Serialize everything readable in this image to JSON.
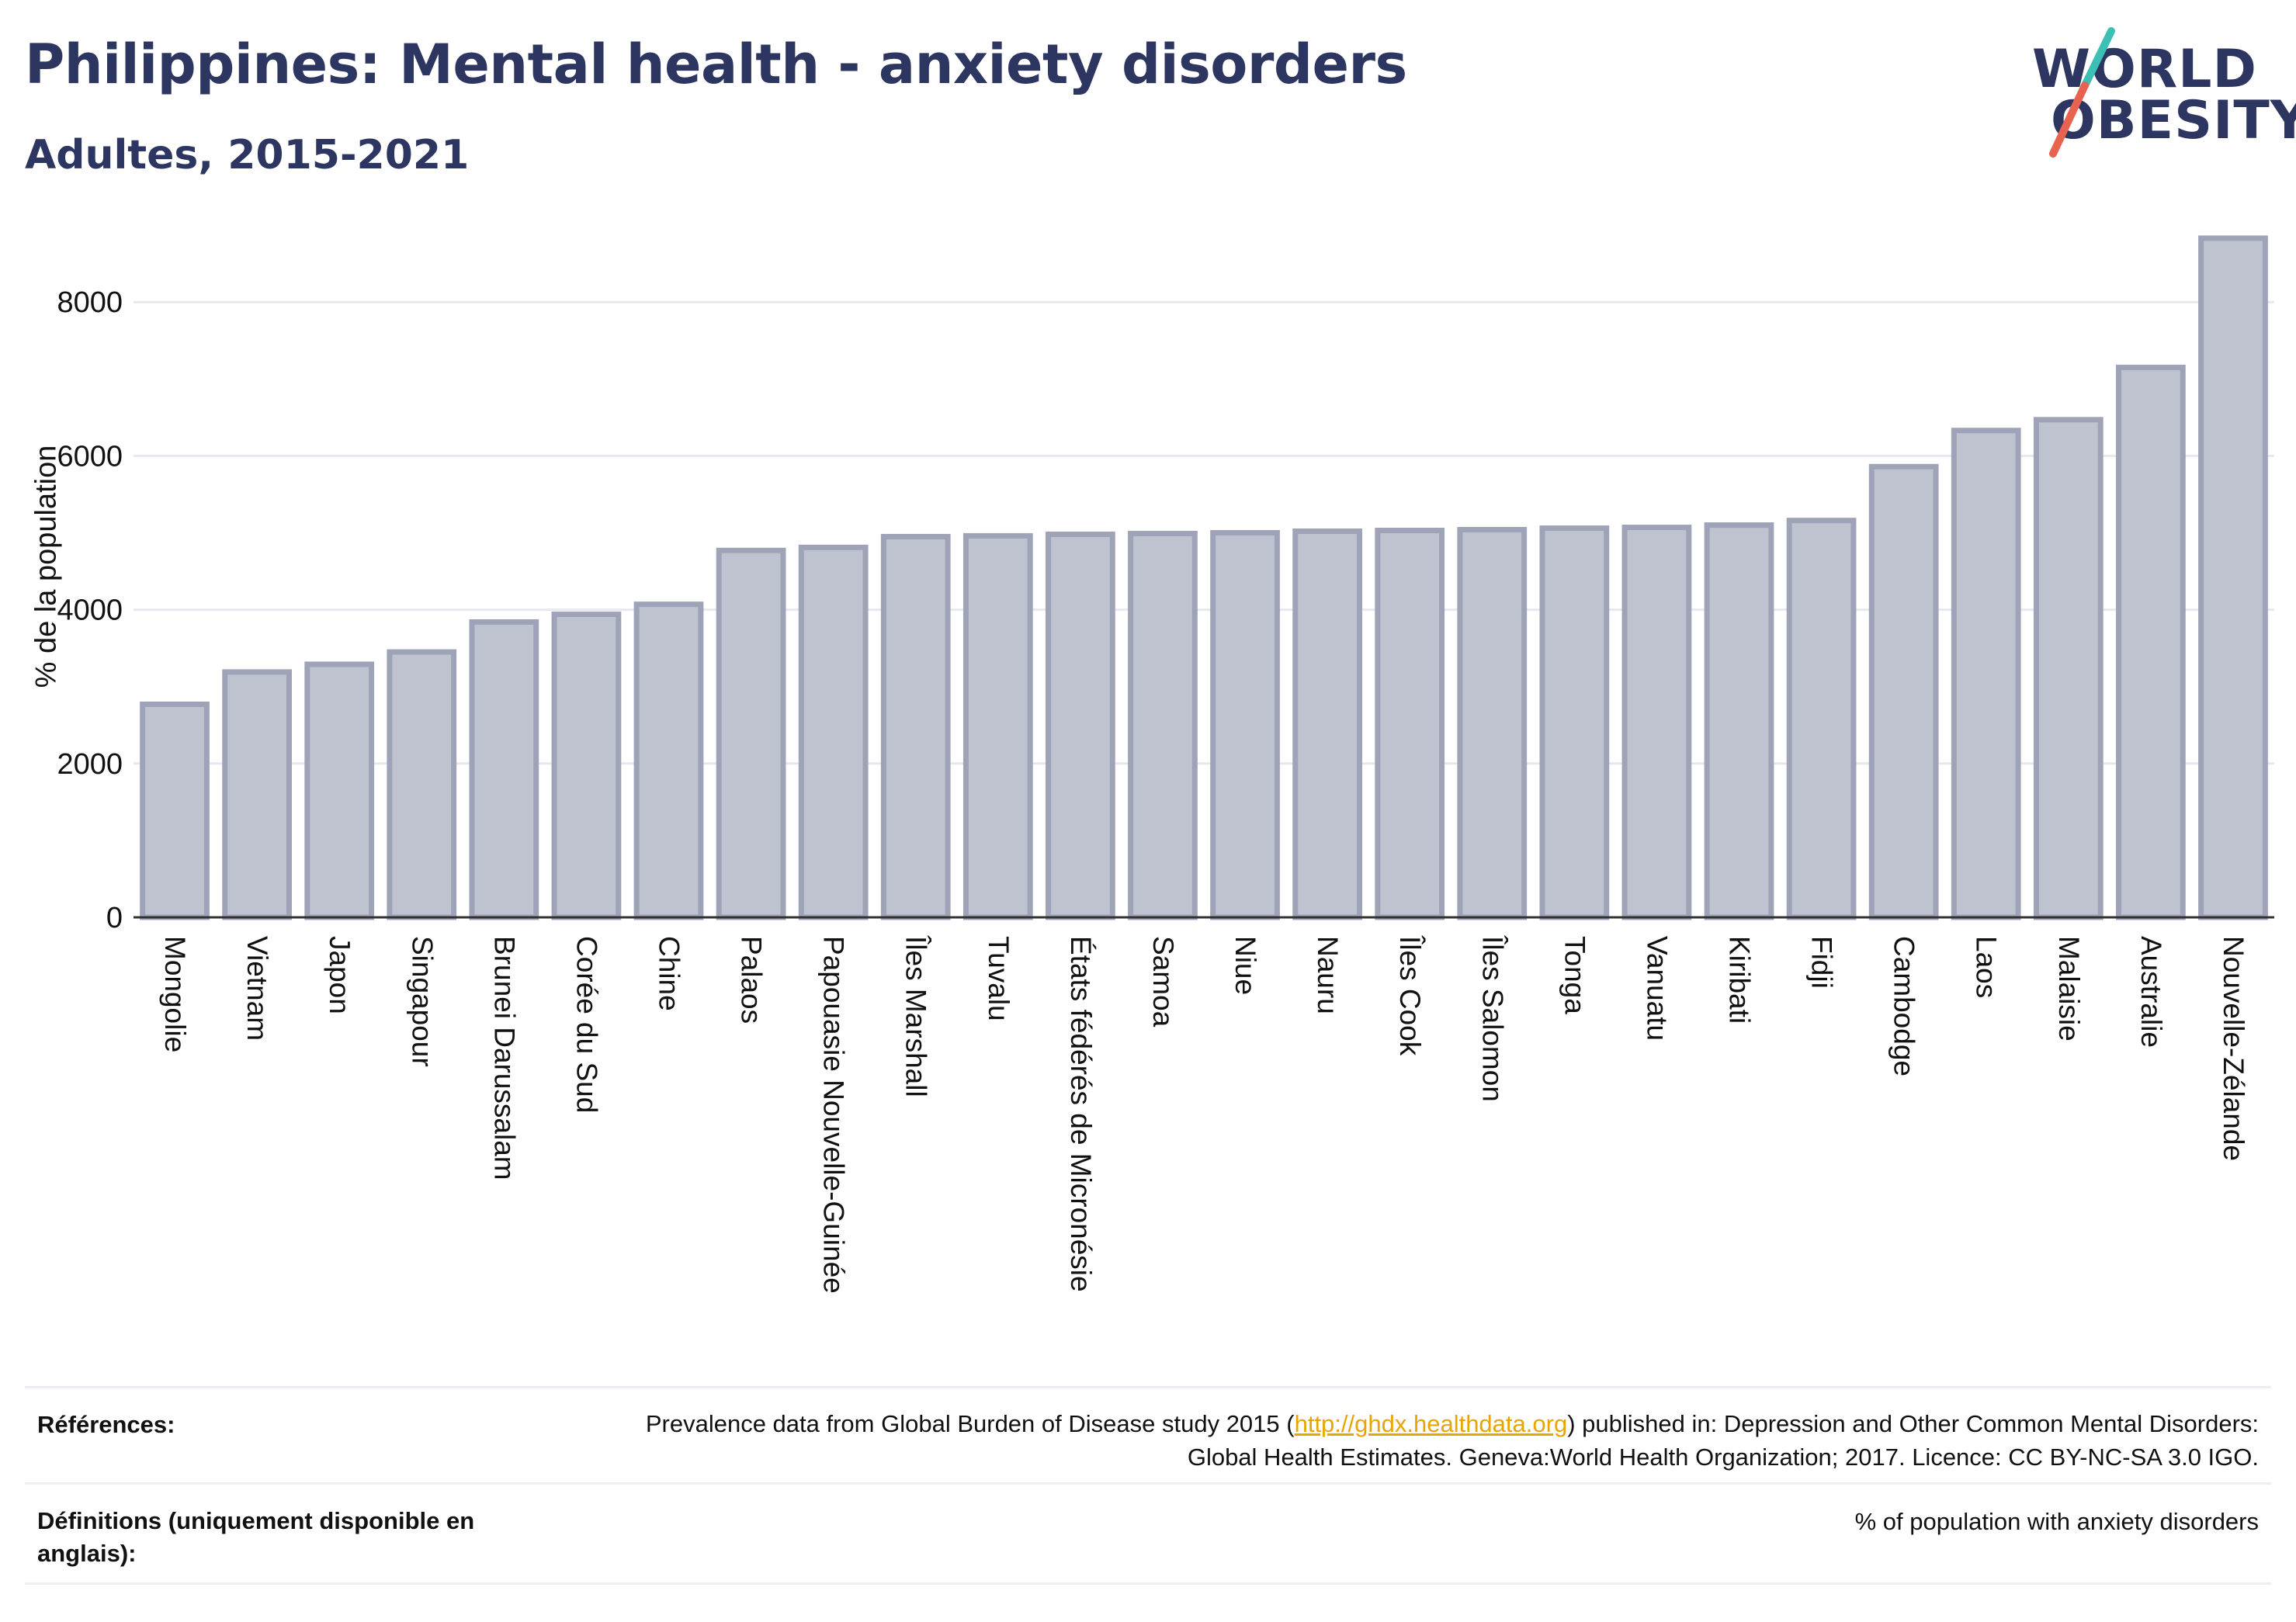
{
  "header": {
    "title": "Philippines: Mental health - anxiety disorders",
    "subtitle": "Adultes, 2015-2021"
  },
  "logo": {
    "line1": "WORLD",
    "line2": "OBESITY",
    "colors": {
      "text": "#2d3561",
      "slash_top": "#3cbfb4",
      "slash_bottom": "#e8634f"
    }
  },
  "chart_data": {
    "type": "bar",
    "ylabel": "% de la population",
    "ylim": [
      0,
      8900
    ],
    "yticks": [
      0,
      2000,
      4000,
      6000,
      8000
    ],
    "grid": true,
    "bar_color": "#bfc3d0",
    "bar_border_color": "#9ea3b8",
    "categories": [
      "Mongolie",
      "Vietnam",
      "Japon",
      "Singapour",
      "Brunei Darussalam",
      "Corée du Sud",
      "Chine",
      "Palaos",
      "Papouasie Nouvelle-Guinée",
      "Îles Marshall",
      "Tuvalu",
      "États fédérés de Micronésie",
      "Samoa",
      "Niue",
      "Nauru",
      "Îles Cook",
      "Îles Salomon",
      "Tonga",
      "Vanuatu",
      "Kiribati",
      "Fidji",
      "Cambodge",
      "Laos",
      "Malaisie",
      "Australie",
      "Nouvelle-Zélande"
    ],
    "values": [
      2770,
      3190,
      3290,
      3450,
      3840,
      3940,
      4070,
      4770,
      4810,
      4950,
      4960,
      4980,
      4990,
      5000,
      5020,
      5030,
      5040,
      5060,
      5070,
      5100,
      5160,
      5860,
      6330,
      6470,
      7150,
      8830
    ]
  },
  "references": {
    "label": "Références:",
    "text_before": "Prevalence data from Global Burden of Disease study 2015 (",
    "link": "http://ghdx.healthdata.org",
    "text_after": ") published in: Depression and Other Common Mental Disorders: Global Health Estimates. Geneva:World Health Organization; 2017. Licence: CC BY-NC-SA 3.0 IGO."
  },
  "definitions": {
    "label": "Définitions (uniquement disponible en anglais):",
    "text": "% of population with anxiety disorders"
  }
}
